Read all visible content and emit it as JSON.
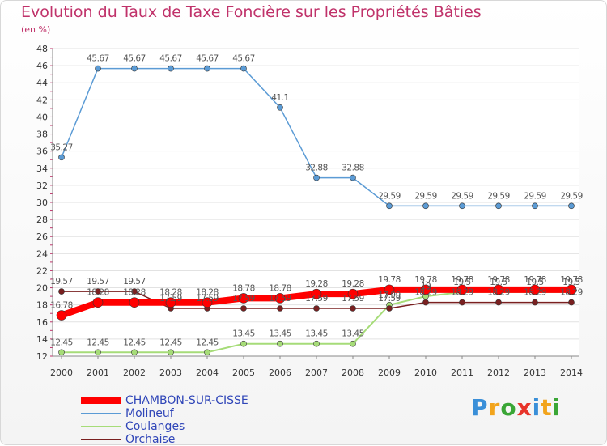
{
  "chart_data": {
    "type": "line",
    "title": "Evolution du Taux de Taxe Foncière sur les Propriétés Bâties",
    "unit_label": "(en %)",
    "x": [
      "2000",
      "2001",
      "2002",
      "2003",
      "2004",
      "2005",
      "2006",
      "2007",
      "2008",
      "2009",
      "2010",
      "2011",
      "2012",
      "2013",
      "2014"
    ],
    "yticks": [
      "12",
      "14",
      "16",
      "18",
      "20",
      "22",
      "24",
      "26",
      "28",
      "30",
      "32",
      "34",
      "36",
      "38",
      "40",
      "42",
      "44",
      "46",
      "48"
    ],
    "ylim": [
      12,
      48
    ],
    "grid": "horizontal",
    "series": [
      {
        "name": "CHAMBON-SUR-CISSE",
        "color": "#ff0000",
        "values": [
          16.78,
          18.28,
          18.28,
          18.28,
          18.28,
          18.78,
          18.78,
          19.28,
          19.28,
          19.78,
          19.78,
          19.78,
          19.78,
          19.78,
          19.78
        ],
        "labels": [
          "16.78",
          "18.28",
          "18.28",
          "18.28",
          "18.28",
          "18.78",
          "18.78",
          "19.28",
          "19.28",
          "19.78",
          "19.78",
          "19.78",
          "19.78",
          "19.78",
          "19.78"
        ]
      },
      {
        "name": "Molineuf",
        "color": "#5b9bd5",
        "values": [
          35.27,
          45.67,
          45.67,
          45.67,
          45.67,
          45.67,
          41.1,
          32.88,
          32.88,
          29.59,
          29.59,
          29.59,
          29.59,
          29.59,
          29.59
        ],
        "labels": [
          "35.27",
          "45.67",
          "45.67",
          "45.67",
          "45.67",
          "45.67",
          "41.1",
          "32.88",
          "32.88",
          "29.59",
          "29.59",
          "29.59",
          "29.59",
          "29.59",
          "29.59"
        ]
      },
      {
        "name": "Coulanges",
        "color": "#a6dc78",
        "values": [
          12.45,
          12.45,
          12.45,
          12.45,
          12.45,
          13.45,
          13.45,
          13.45,
          13.45,
          17.99,
          19.0,
          19.5,
          19.5,
          19.5,
          19.5
        ],
        "labels": [
          "12.45",
          "12.45",
          "12.45",
          "12.45",
          "12.45",
          "13.45",
          "13.45",
          "13.45",
          "13.45",
          "17.99",
          "19",
          "19.5",
          "19.5",
          "19.5",
          "19.5"
        ]
      },
      {
        "name": "Orchaise",
        "color": "#7a2020",
        "values": [
          19.57,
          19.57,
          19.57,
          17.59,
          17.59,
          17.59,
          17.59,
          17.59,
          17.59,
          17.59,
          18.29,
          18.29,
          18.29,
          18.29,
          18.29
        ],
        "labels": [
          "19.57",
          "19.57",
          "19.57",
          "17.59",
          "17.59",
          "17.59",
          "17.59",
          "17.59",
          "17.59",
          "17.59",
          "18.29",
          "18.29",
          "18.29",
          "18.29",
          "18.29"
        ]
      }
    ]
  },
  "legend": {
    "items": [
      {
        "label": "CHAMBON-SUR-CISSE",
        "color": "#ff0000",
        "thickness": 8
      },
      {
        "label": "Molineuf",
        "color": "#5b9bd5",
        "thickness": 2
      },
      {
        "label": "Coulanges",
        "color": "#a6dc78",
        "thickness": 2
      },
      {
        "label": "Orchaise",
        "color": "#7a2020",
        "thickness": 2
      }
    ]
  },
  "logo": {
    "letters": [
      "P",
      "r",
      "o",
      "x",
      "i",
      "t",
      "i"
    ],
    "colors": [
      "#3a8fd8",
      "#f2a41c",
      "#3aa636",
      "#e8342a",
      "#3a8fd8",
      "#f2a41c",
      "#3aa636"
    ]
  }
}
